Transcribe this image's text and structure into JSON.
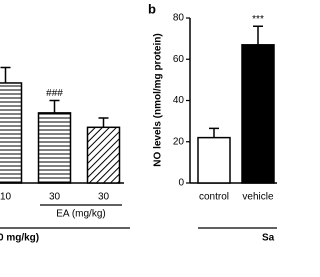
{
  "chart_data": [
    {
      "type": "bar",
      "categories": [
        "10",
        "30",
        "30"
      ],
      "values": [
        48.5,
        34,
        27
      ],
      "errors": [
        7.5,
        6,
        4.5
      ],
      "patterns": [
        "hlines",
        "hlines",
        "diag"
      ],
      "annotations": [
        null,
        "###",
        null
      ],
      "group_label": "EA (mg/kg)",
      "bottom_label": "0 mg/kg)",
      "ylim": [
        0,
        80
      ]
    },
    {
      "type": "bar",
      "panel_label": "b",
      "y_label": "NO levels (nmol/mg protein)",
      "categories": [
        "control",
        "vehicle"
      ],
      "values": [
        22,
        67
      ],
      "errors": [
        4.5,
        9
      ],
      "colors": [
        "#ffffff",
        "#000000"
      ],
      "annotations": [
        null,
        "***"
      ],
      "bottom_label": "Sa",
      "ylim": [
        0,
        80
      ],
      "yticks": [
        0,
        20,
        40,
        60,
        80
      ]
    }
  ]
}
